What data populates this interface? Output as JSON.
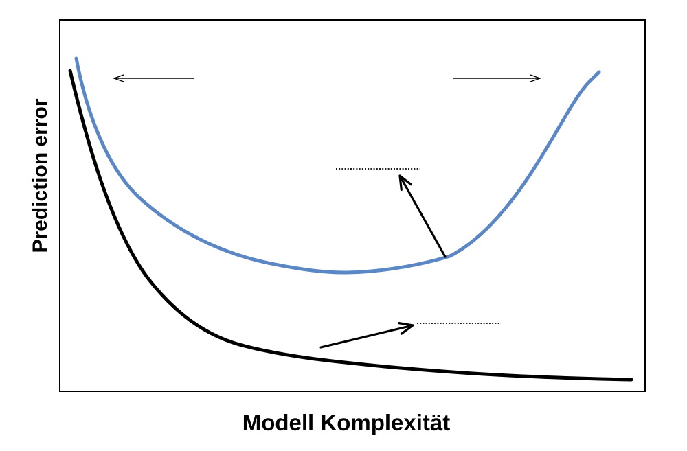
{
  "diagram": {
    "ylabel": "Prediction error",
    "xlabel": "Modell Komplexität",
    "colors": {
      "test_curve": "#5b87c4",
      "train_curve": "#000000",
      "frame": "#000000",
      "annotation": "#000000"
    }
  }
}
